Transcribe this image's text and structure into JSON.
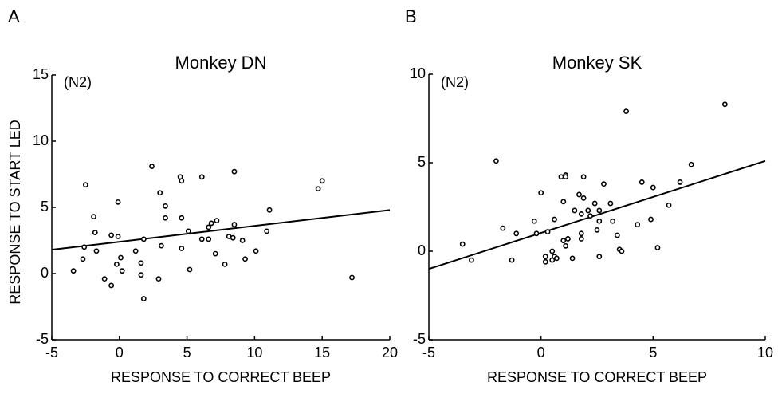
{
  "chart_data": [
    {
      "type": "scatter",
      "panel_label": "A",
      "title": "Monkey DN",
      "annotation": "(N2)",
      "xlabel": "RESPONSE TO CORRECT BEEP",
      "ylabel": "RESPONSE TO START LED",
      "xlim": [
        -5,
        20
      ],
      "ylim": [
        -5,
        15
      ],
      "xticks": [
        -5,
        0,
        5,
        10,
        15,
        20
      ],
      "yticks": [
        -5,
        0,
        5,
        10,
        15
      ],
      "color": "#000000",
      "x": [
        -2.5,
        2.4,
        4.5,
        4.6,
        6.1,
        8.5,
        15,
        14.7,
        3.0,
        -0.1,
        3.4,
        -1.9,
        11.1,
        3.4,
        4.6,
        7.2,
        6.8,
        6.6,
        8.5,
        -1.8,
        5.1,
        10.9,
        -0.6,
        -0.1,
        6.1,
        6.6,
        8.1,
        8.4,
        9.1,
        1.8,
        -2.6,
        3.1,
        1.2,
        -1.7,
        4.6,
        7.1,
        10.1,
        0.1,
        -2.7,
        1.6,
        -0.2,
        7.8,
        9.3,
        0.2,
        5.2,
        -3.4,
        1.6,
        -1.1,
        2.9,
        17.2,
        -0.6,
        1.8
      ],
      "y": [
        6.7,
        8.1,
        7.3,
        7.0,
        7.3,
        7.7,
        7.0,
        6.4,
        6.1,
        5.4,
        5.1,
        4.3,
        4.8,
        4.2,
        4.2,
        4.0,
        3.8,
        3.5,
        3.7,
        3.1,
        3.2,
        3.2,
        2.9,
        2.8,
        2.6,
        2.6,
        2.8,
        2.7,
        2.5,
        2.6,
        2.0,
        2.1,
        1.7,
        1.7,
        1.9,
        1.5,
        1.7,
        1.2,
        1.1,
        0.8,
        0.7,
        0.7,
        1.1,
        0.2,
        0.3,
        0.2,
        -0.1,
        -0.4,
        -0.4,
        -0.3,
        -0.9,
        -1.9
      ],
      "trendline": {
        "x": [
          -5,
          20
        ],
        "y": [
          1.8,
          4.8
        ]
      }
    },
    {
      "type": "scatter",
      "panel_label": "B",
      "title": "Monkey SK",
      "annotation": "(N2)",
      "xlabel": "RESPONSE TO CORRECT BEEP",
      "xlim": [
        -5,
        10
      ],
      "ylim": [
        -5,
        10
      ],
      "xticks": [
        -5,
        0,
        5,
        10
      ],
      "yticks": [
        -5,
        0,
        5,
        10
      ],
      "color": "#000000",
      "x": [
        3.8,
        8.2,
        -2.0,
        6.7,
        1.1,
        1.1,
        0.9,
        1.9,
        4.5,
        5.0,
        6.2,
        2.8,
        0,
        1.7,
        1.9,
        1.0,
        2.4,
        1.5,
        3.1,
        5.7,
        2.1,
        2.6,
        0.6,
        1.8,
        2.2,
        4.9,
        3.2,
        2.6,
        -0.3,
        -1.7,
        4.3,
        2.5,
        -1.1,
        -0.2,
        0.3,
        1.8,
        3.4,
        1.2,
        1.0,
        1.1,
        1.8,
        -3.5,
        0.5,
        3.5,
        3.6,
        5.2,
        0.6,
        1.4,
        2.6,
        -1.3,
        0.2,
        -3.1,
        0.5,
        0.2,
        0.7
      ],
      "y": [
        7.9,
        8.3,
        5.1,
        4.9,
        4.3,
        4.2,
        4.2,
        4.2,
        3.9,
        3.6,
        3.9,
        3.8,
        3.3,
        3.2,
        3.0,
        2.8,
        2.7,
        2.3,
        2.7,
        2.6,
        2.3,
        2.3,
        1.8,
        2.1,
        2.0,
        1.8,
        1.7,
        1.7,
        1.7,
        1.3,
        1.5,
        1.2,
        1.0,
        1.0,
        1.1,
        1.0,
        0.9,
        0.7,
        0.6,
        0.3,
        0.7,
        0.4,
        0.0,
        0.1,
        0.0,
        0.2,
        -0.3,
        -0.4,
        -0.3,
        -0.5,
        -0.6,
        -0.5,
        -0.5,
        -0.3,
        -0.4
      ],
      "trendline": {
        "x": [
          -5,
          10
        ],
        "y": [
          -1.0,
          5.1
        ]
      }
    }
  ]
}
